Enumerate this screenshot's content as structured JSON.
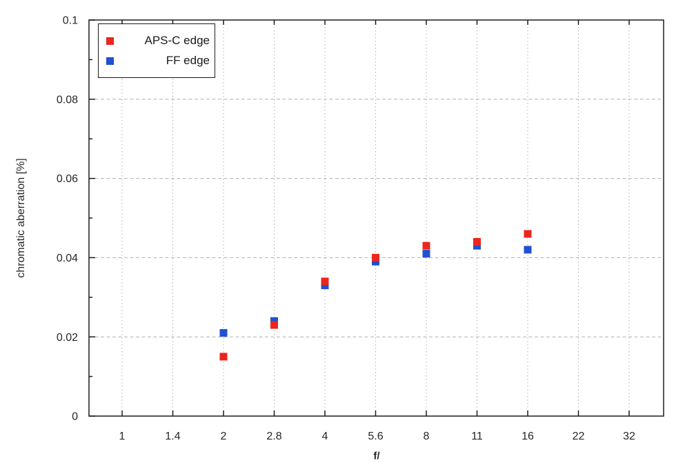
{
  "figure": {
    "background": "#ffffff",
    "frame_color": "#1a1a1a",
    "grid_color": "#b0b0b0"
  },
  "chart_data": {
    "type": "scatter",
    "title": "",
    "xlabel": "f/",
    "ylabel": "chromatic aberration [%]",
    "x_scale": "log-fstop",
    "x_ticks": [
      1,
      1.4,
      2,
      2.8,
      4,
      5.6,
      8,
      11,
      16,
      22,
      32
    ],
    "x_tick_labels": [
      "1",
      "1.4",
      "2",
      "2.8",
      "4",
      "5.6",
      "8",
      "11",
      "16",
      "22",
      "32"
    ],
    "y_ticks": [
      0,
      0.02,
      0.04,
      0.06,
      0.08,
      0.1
    ],
    "y_tick_labels": [
      "0",
      "0.02",
      "0.04",
      "0.06",
      "0.08",
      "0.1"
    ],
    "ylim": [
      0,
      0.1
    ],
    "y_minor_tick_step": 0.01,
    "grid": true,
    "grid_style": "dashed",
    "legend_position": "top-left",
    "marker": "square",
    "series": [
      {
        "name": "APS-C edge",
        "color": "#ea261d",
        "points": [
          [
            2,
            0.015
          ],
          [
            2.8,
            0.023
          ],
          [
            4,
            0.034
          ],
          [
            5.6,
            0.04
          ],
          [
            8,
            0.043
          ],
          [
            11,
            0.044
          ],
          [
            16,
            0.046
          ]
        ]
      },
      {
        "name": "FF edge",
        "color": "#2150d0",
        "points": [
          [
            2,
            0.021
          ],
          [
            2.8,
            0.024
          ],
          [
            4,
            0.033
          ],
          [
            5.6,
            0.039
          ],
          [
            8,
            0.041
          ],
          [
            11,
            0.043
          ],
          [
            16,
            0.042
          ]
        ]
      }
    ]
  }
}
